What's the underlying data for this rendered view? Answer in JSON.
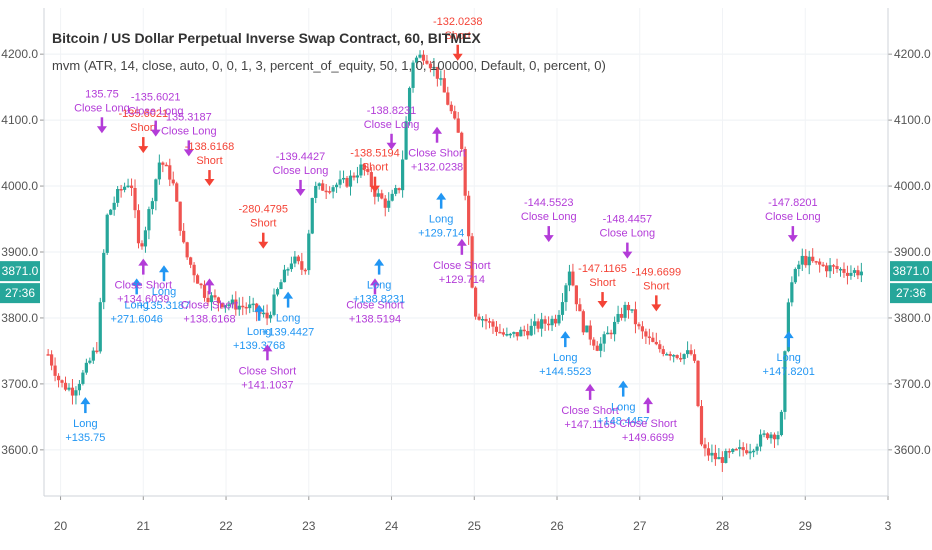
{
  "header": {
    "title": "Bitcoin / US Dollar Perpetual Inverse Swap Contract, 60, BITMEX",
    "study": "mvm (ATR, 14, close, auto, 0, 0, 1, 3, percent_of_equity, 50, 1, 0, 100000, Default, 0, percent, 0)"
  },
  "axis": {
    "y_ticks": [
      "4200.0",
      "4100.0",
      "4000.0",
      "3900.0",
      "3800.0",
      "3700.0",
      "3600.0"
    ],
    "x_ticks": [
      "20",
      "21",
      "22",
      "23",
      "24",
      "25",
      "26",
      "27",
      "28",
      "29",
      "3"
    ],
    "price_badge": "3871.0",
    "time_badge": "27:36"
  },
  "colors": {
    "up": "#26a69a",
    "down": "#ef5350",
    "long": "#2196f3",
    "short": "#f44336",
    "close": "#b33cd8",
    "badge": "#26a69a"
  },
  "chart_data": {
    "type": "candlestick",
    "xlim": [
      19.8,
      30.0
    ],
    "ylim": [
      3530,
      4270
    ],
    "price_path": [
      [
        19.85,
        3745
      ],
      [
        20.0,
        3700
      ],
      [
        20.15,
        3690
      ],
      [
        20.3,
        3720
      ],
      [
        20.45,
        3760
      ],
      [
        20.55,
        3950
      ],
      [
        20.7,
        3990
      ],
      [
        20.85,
        4010
      ],
      [
        20.95,
        3900
      ],
      [
        21.05,
        3950
      ],
      [
        21.2,
        4040
      ],
      [
        21.35,
        4010
      ],
      [
        21.5,
        3900
      ],
      [
        21.65,
        3860
      ],
      [
        21.75,
        3835
      ],
      [
        21.9,
        3825
      ],
      [
        22.1,
        3820
      ],
      [
        22.3,
        3815
      ],
      [
        22.5,
        3800
      ],
      [
        22.65,
        3850
      ],
      [
        22.8,
        3890
      ],
      [
        22.95,
        3870
      ],
      [
        23.05,
        3995
      ],
      [
        23.25,
        4000
      ],
      [
        23.45,
        4005
      ],
      [
        23.65,
        4030
      ],
      [
        23.8,
        3990
      ],
      [
        23.95,
        3970
      ],
      [
        24.1,
        4000
      ],
      [
        24.25,
        4190
      ],
      [
        24.4,
        4200
      ],
      [
        24.55,
        4170
      ],
      [
        24.7,
        4120
      ],
      [
        24.85,
        4060
      ],
      [
        25.0,
        3810
      ],
      [
        25.2,
        3790
      ],
      [
        25.4,
        3770
      ],
      [
        25.6,
        3780
      ],
      [
        25.8,
        3790
      ],
      [
        26.0,
        3800
      ],
      [
        26.15,
        3875
      ],
      [
        26.3,
        3790
      ],
      [
        26.5,
        3755
      ],
      [
        26.7,
        3790
      ],
      [
        26.85,
        3820
      ],
      [
        27.0,
        3780
      ],
      [
        27.2,
        3755
      ],
      [
        27.45,
        3745
      ],
      [
        27.65,
        3745
      ],
      [
        27.75,
        3600
      ],
      [
        27.95,
        3585
      ],
      [
        28.15,
        3595
      ],
      [
        28.35,
        3605
      ],
      [
        28.55,
        3625
      ],
      [
        28.7,
        3625
      ],
      [
        28.8,
        3840
      ],
      [
        28.95,
        3890
      ],
      [
        29.15,
        3880
      ],
      [
        29.35,
        3875
      ],
      [
        29.55,
        3870
      ],
      [
        29.7,
        3871
      ]
    ],
    "trades": [
      {
        "type": "long",
        "x": 20.3,
        "y": 3680,
        "label": "Long",
        "value": "+135.75"
      },
      {
        "type": "close_long",
        "x": 20.5,
        "y": 4080,
        "label": "Close Long",
        "value": "135.75"
      },
      {
        "type": "long",
        "x": 20.92,
        "y": 3860,
        "label": "Long",
        "value": "+271.6046"
      },
      {
        "type": "close_short",
        "x": 21.0,
        "y": 3890,
        "label": "Close Short",
        "value": "+134.6039"
      },
      {
        "type": "short",
        "x": 21.0,
        "y": 4050,
        "label": "Short",
        "value": "-135.6021"
      },
      {
        "type": "close_long",
        "x": 21.15,
        "y": 4075,
        "label": "Close Long",
        "value": "-135.6021"
      },
      {
        "type": "long",
        "x": 21.25,
        "y": 3880,
        "label": "Long",
        "value": "+135.3187"
      },
      {
        "type": "close_long",
        "x": 21.55,
        "y": 4045,
        "label": "Close Long",
        "value": "135.3187"
      },
      {
        "type": "short",
        "x": 21.8,
        "y": 4000,
        "label": "Short",
        "value": "-138.6168"
      },
      {
        "type": "close_short",
        "x": 21.8,
        "y": 3860,
        "label": "Close Short",
        "value": "+138.6168"
      },
      {
        "type": "long",
        "x": 22.4,
        "y": 3820,
        "label": "Long",
        "value": "+139.3768"
      },
      {
        "type": "short",
        "x": 22.45,
        "y": 3905,
        "label": "Short",
        "value": "-280.4795"
      },
      {
        "type": "close_short",
        "x": 22.5,
        "y": 3760,
        "label": "Close Short",
        "value": "+141.1037"
      },
      {
        "type": "long",
        "x": 22.75,
        "y": 3840,
        "label": "Long",
        "value": "+139.4427"
      },
      {
        "type": "close_long",
        "x": 22.9,
        "y": 3985,
        "label": "Close Long",
        "value": "-139.4427"
      },
      {
        "type": "short",
        "x": 23.8,
        "y": 3990,
        "label": "Short",
        "value": "-138.5194"
      },
      {
        "type": "close_short",
        "x": 23.8,
        "y": 3860,
        "label": "Close Short",
        "value": "+138.5194"
      },
      {
        "type": "long",
        "x": 23.85,
        "y": 3890,
        "label": "Long",
        "value": "+138.8231"
      },
      {
        "type": "close_long",
        "x": 24.0,
        "y": 4055,
        "label": "Close Long",
        "value": "-138.8231"
      },
      {
        "type": "short",
        "x": 24.8,
        "y": 4190,
        "label": "Short",
        "value": "-132.0238"
      },
      {
        "type": "close_short",
        "x": 24.55,
        "y": 4090,
        "label": "Close Short",
        "value": "+132.0238"
      },
      {
        "type": "long",
        "x": 24.6,
        "y": 3990,
        "label": "Long",
        "value": "+129.714"
      },
      {
        "type": "close_short",
        "x": 24.85,
        "y": 3920,
        "label": "Close Short",
        "value": "+129.714"
      },
      {
        "type": "close_long",
        "x": 25.9,
        "y": 3915,
        "label": "Close Long",
        "value": "-144.5523"
      },
      {
        "type": "long",
        "x": 26.1,
        "y": 3780,
        "label": "Long",
        "value": "+144.5523"
      },
      {
        "type": "short",
        "x": 26.55,
        "y": 3815,
        "label": "Short",
        "value": "-147.1165"
      },
      {
        "type": "close_short",
        "x": 26.4,
        "y": 3700,
        "label": "Close Short",
        "value": "+147.1165"
      },
      {
        "type": "long",
        "x": 26.8,
        "y": 3705,
        "label": "Long",
        "value": "+148.4457"
      },
      {
        "type": "close_long",
        "x": 26.85,
        "y": 3890,
        "label": "Close Long",
        "value": "-148.4457"
      },
      {
        "type": "short",
        "x": 27.2,
        "y": 3810,
        "label": "Short",
        "value": "-149.6699"
      },
      {
        "type": "close_short",
        "x": 27.1,
        "y": 3680,
        "label": "Close Short",
        "value": "+149.6699"
      },
      {
        "type": "long",
        "x": 28.8,
        "y": 3780,
        "label": "Long",
        "value": "+147.8201"
      },
      {
        "type": "close_long",
        "x": 28.85,
        "y": 3915,
        "label": "Close Long",
        "value": "-147.8201"
      }
    ]
  }
}
